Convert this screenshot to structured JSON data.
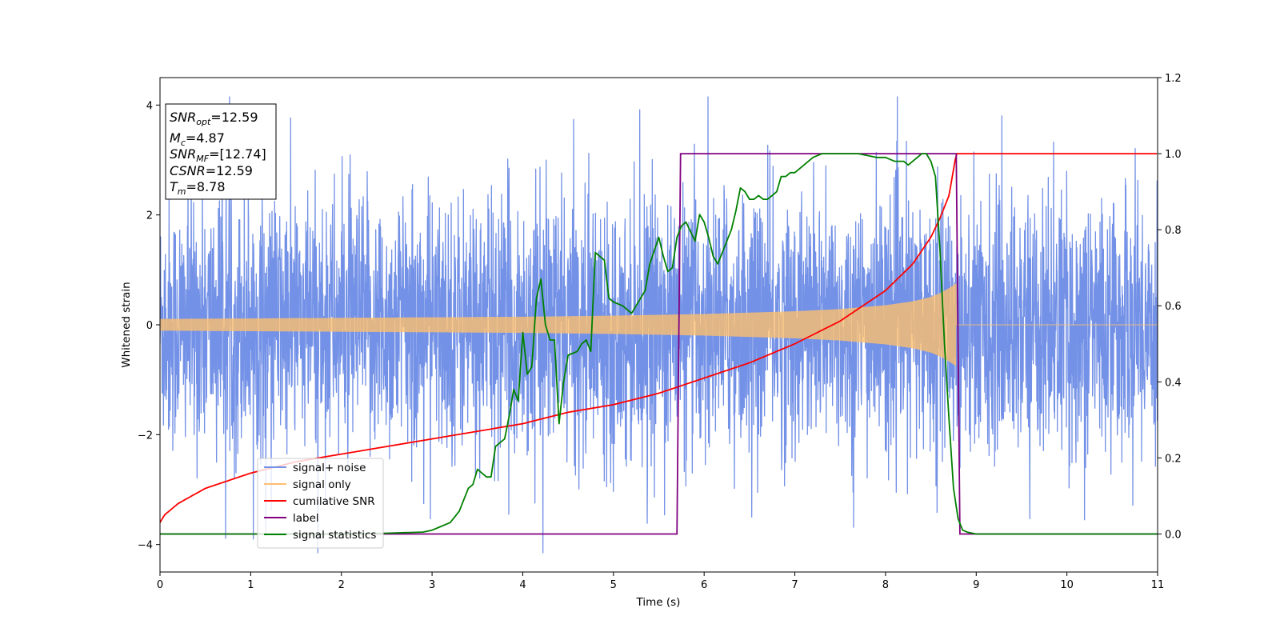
{
  "chart_data": {
    "type": "line",
    "xlabel": "Time (s)",
    "ylabel": "Whitened strain",
    "xlim": [
      0,
      11
    ],
    "ylim_left": [
      -4.5,
      4.5
    ],
    "ylim_right": [
      -0.1,
      1.2
    ],
    "x_ticks": [
      "0",
      "1",
      "2",
      "3",
      "4",
      "5",
      "6",
      "7",
      "8",
      "9",
      "10",
      "11"
    ],
    "y_ticks_left": [
      "4",
      "2",
      "0",
      "−2",
      "−4"
    ],
    "y_ticks_right": [
      "1.2",
      "1.0",
      "0.8",
      "0.6",
      "0.4",
      "0.2",
      "0.0"
    ],
    "grid": false,
    "legend_position": "lower-left",
    "info_box": {
      "snr_opt": "=12.59",
      "mc": "=4.87",
      "snr_mf": "=[12.74]",
      "csnr": "=12.59",
      "tm": "=8.78"
    },
    "series": [
      {
        "name": "signal+ noise",
        "axis": "left",
        "color": "#7391e6",
        "style": "noise band, amplitude about ±2.5 with peaks to about ±4.1",
        "x_range": [
          0,
          11
        ]
      },
      {
        "name": "signal only",
        "axis": "left",
        "color": "#fdbf6f",
        "style": "chirp, envelope grows from ~0.1 to ~0.75, ends at 8.78 s",
        "x": [
          0,
          1,
          2,
          3,
          4,
          5,
          6,
          7,
          7.5,
          8,
          8.3,
          8.5,
          8.6,
          8.7,
          8.78
        ],
        "envelope": [
          0.1,
          0.11,
          0.12,
          0.13,
          0.14,
          0.16,
          0.19,
          0.24,
          0.28,
          0.35,
          0.42,
          0.5,
          0.57,
          0.66,
          0.75
        ]
      },
      {
        "name": "cumilative SNR",
        "axis": "right",
        "color": "#ff0000",
        "x": [
          0,
          0.05,
          0.2,
          0.5,
          1,
          1.5,
          2,
          2.5,
          3,
          3.5,
          4,
          4.5,
          5,
          5.5,
          6,
          6.5,
          7,
          7.5,
          8,
          8.3,
          8.5,
          8.6,
          8.7,
          8.78,
          11
        ],
        "y": [
          0.03,
          0.05,
          0.08,
          0.12,
          0.16,
          0.19,
          0.21,
          0.23,
          0.25,
          0.27,
          0.29,
          0.32,
          0.34,
          0.37,
          0.41,
          0.45,
          0.5,
          0.56,
          0.64,
          0.71,
          0.78,
          0.83,
          0.89,
          1.0,
          1.0
        ]
      },
      {
        "name": "label",
        "axis": "right",
        "color": "#800080",
        "x": [
          0,
          5.7,
          5.74,
          8.78,
          8.82,
          11
        ],
        "y": [
          0,
          0,
          1,
          1,
          0,
          0
        ]
      },
      {
        "name": "signal statistics",
        "axis": "right",
        "color": "#008000",
        "x": [
          0,
          2.0,
          2.5,
          2.9,
          3.0,
          3.1,
          3.2,
          3.3,
          3.4,
          3.45,
          3.5,
          3.6,
          3.65,
          3.7,
          3.8,
          3.85,
          3.9,
          3.95,
          4.0,
          4.05,
          4.1,
          4.15,
          4.2,
          4.25,
          4.3,
          4.35,
          4.4,
          4.45,
          4.5,
          4.6,
          4.65,
          4.7,
          4.75,
          4.8,
          4.9,
          4.95,
          5.0,
          5.1,
          5.2,
          5.3,
          5.35,
          5.4,
          5.5,
          5.55,
          5.6,
          5.65,
          5.7,
          5.75,
          5.8,
          5.9,
          5.95,
          6.0,
          6.05,
          6.1,
          6.15,
          6.2,
          6.25,
          6.3,
          6.35,
          6.4,
          6.45,
          6.5,
          6.55,
          6.6,
          6.65,
          6.7,
          6.75,
          6.8,
          6.85,
          6.9,
          6.95,
          7.0,
          7.1,
          7.2,
          7.3,
          7.4,
          7.5,
          7.7,
          7.9,
          8.0,
          8.1,
          8.2,
          8.25,
          8.3,
          8.35,
          8.4,
          8.45,
          8.5,
          8.55,
          8.6,
          8.65,
          8.7,
          8.75,
          8.8,
          8.85,
          8.9,
          9.0,
          9.5,
          11
        ],
        "y": [
          0.0,
          0.0,
          0.002,
          0.005,
          0.01,
          0.02,
          0.03,
          0.06,
          0.12,
          0.13,
          0.17,
          0.15,
          0.15,
          0.23,
          0.25,
          0.31,
          0.38,
          0.35,
          0.53,
          0.42,
          0.44,
          0.62,
          0.67,
          0.55,
          0.51,
          0.51,
          0.29,
          0.4,
          0.47,
          0.48,
          0.5,
          0.51,
          0.48,
          0.74,
          0.72,
          0.62,
          0.61,
          0.6,
          0.58,
          0.62,
          0.64,
          0.71,
          0.78,
          0.73,
          0.69,
          0.7,
          0.78,
          0.81,
          0.82,
          0.77,
          0.84,
          0.82,
          0.78,
          0.73,
          0.71,
          0.74,
          0.77,
          0.8,
          0.85,
          0.91,
          0.9,
          0.88,
          0.88,
          0.89,
          0.88,
          0.88,
          0.89,
          0.9,
          0.94,
          0.94,
          0.95,
          0.95,
          0.97,
          0.99,
          1.0,
          1.0,
          1.0,
          1.0,
          0.99,
          0.99,
          0.98,
          0.98,
          0.97,
          0.98,
          0.99,
          1.0,
          1.0,
          0.98,
          0.94,
          0.75,
          0.5,
          0.3,
          0.12,
          0.04,
          0.01,
          0.005,
          0.0,
          0.0,
          0.0
        ]
      }
    ]
  }
}
